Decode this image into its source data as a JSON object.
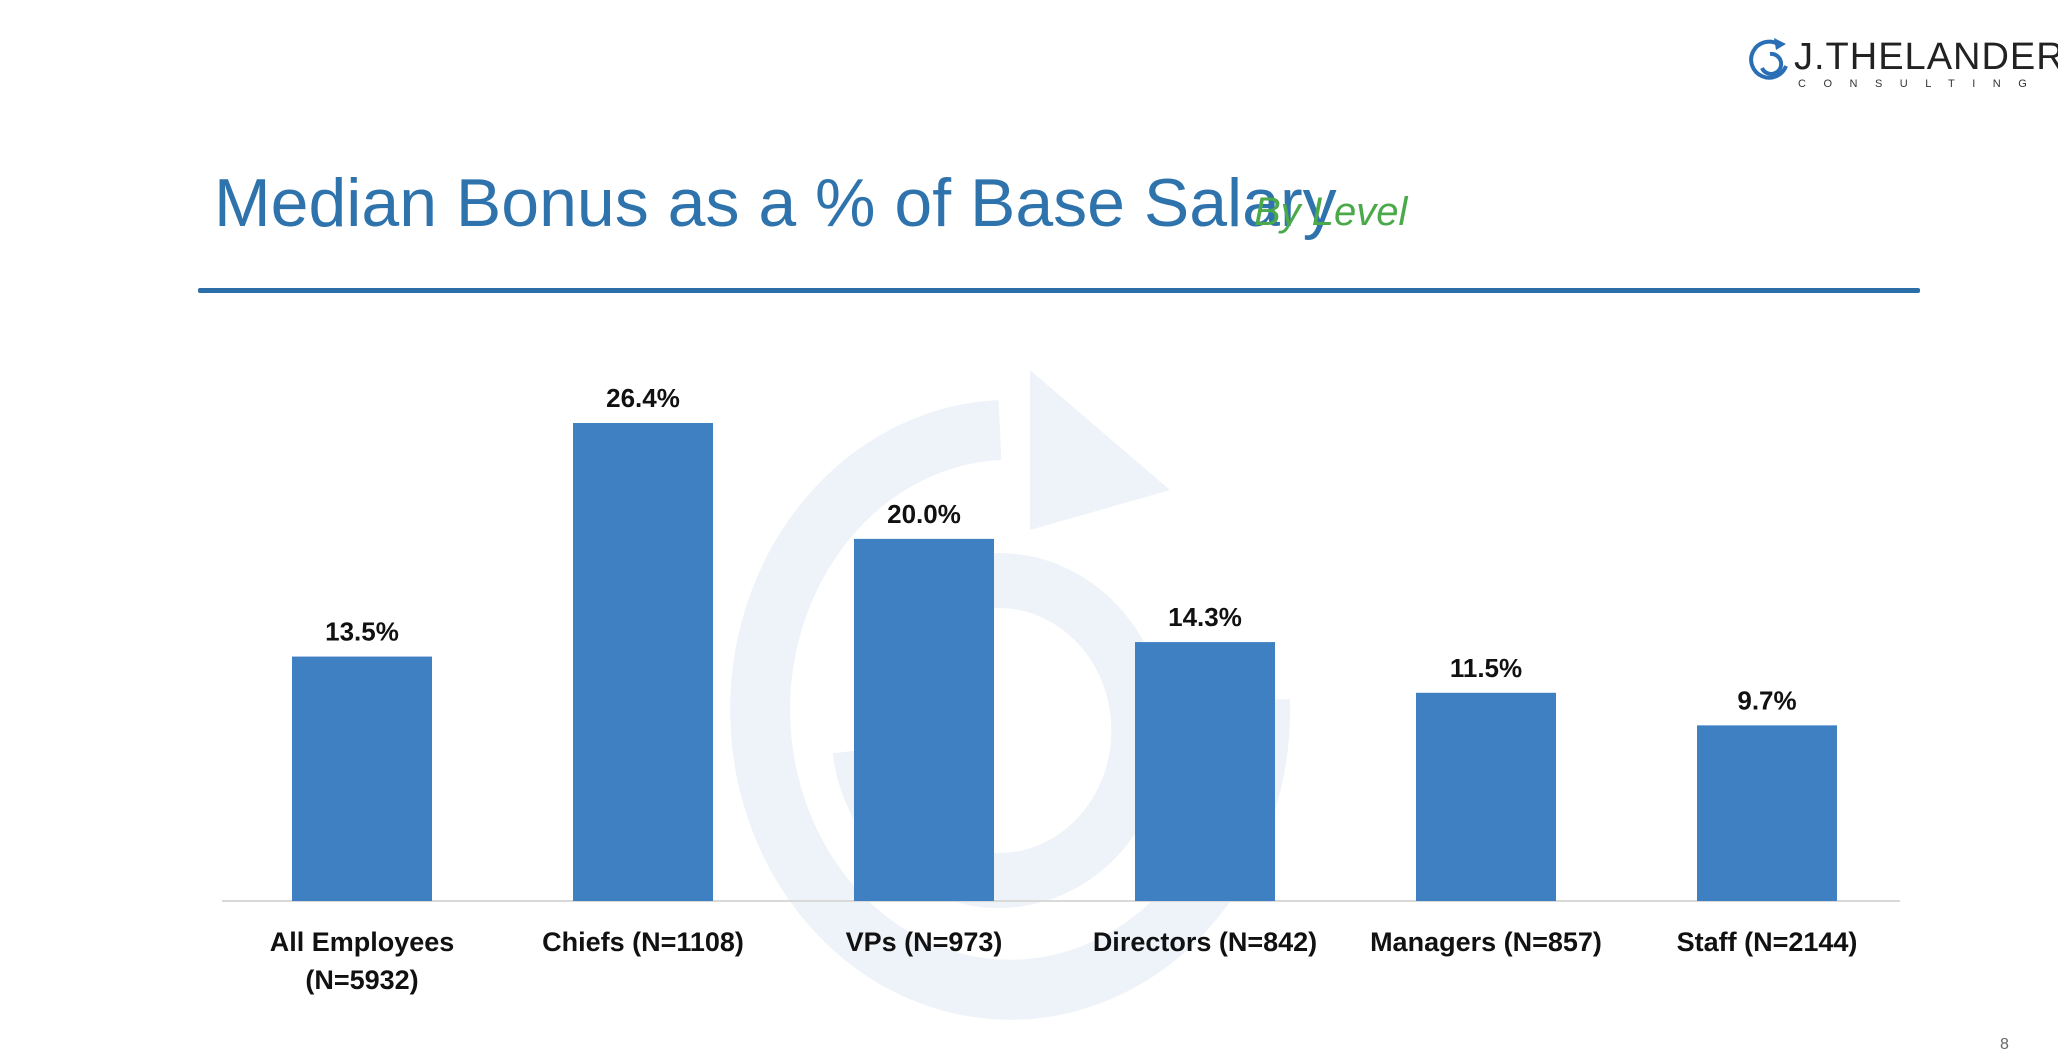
{
  "logo": {
    "name": "J.THELANDER",
    "sub": "CONSULTING",
    "icon": "spiral-arrow-icon"
  },
  "colors": {
    "bar": "#3a7dc1",
    "title": "#2f73ad",
    "subtitle": "#4aaa4a",
    "rule": "#2b6ea8"
  },
  "chart_data": {
    "type": "bar",
    "title": "Median Bonus as a % of Base Salary",
    "subtitle": "By Level",
    "categories": [
      [
        "All Employees",
        "(N=5932)"
      ],
      [
        "Chiefs (N=1108)"
      ],
      [
        "VPs (N=973)"
      ],
      [
        "Directors (N=842)"
      ],
      [
        "Managers (N=857)"
      ],
      [
        "Staff (N=2144)"
      ]
    ],
    "values": [
      13.5,
      26.4,
      20.0,
      14.3,
      11.5,
      9.7
    ],
    "value_labels": [
      "13.5%",
      "26.4%",
      "20.0%",
      "14.3%",
      "11.5%",
      "9.7%"
    ],
    "ylim": [
      0,
      30
    ],
    "grid": false,
    "legend": "none"
  }
}
